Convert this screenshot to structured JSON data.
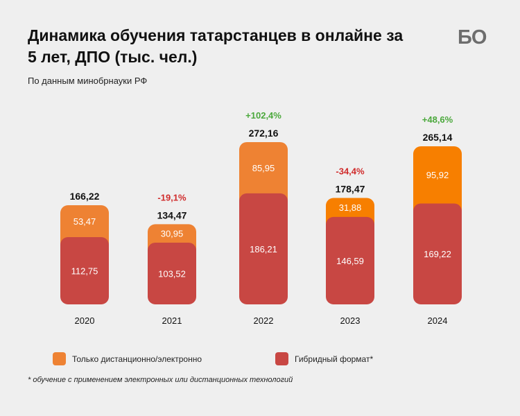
{
  "header": {
    "title": "Динамика обучения татарстанцев в онлайне за 5 лет, ДПО (тыс. чел.)",
    "subtitle": "По данным минобрнауки РФ",
    "logo": "БО"
  },
  "legend": {
    "remote_label": "Только дистанционно/электронно",
    "hybrid_label": "Гибридный формат*"
  },
  "footnote": "* обучение с применением электронных или дистанционных технологий",
  "colors": {
    "remote": "#ee8233",
    "remote_highlight": "#f77f00",
    "hybrid": "#c84743",
    "positive": "#4ba83c",
    "negative": "#d02b2b"
  },
  "chart_data": {
    "type": "bar",
    "stacked": true,
    "categories": [
      "2020",
      "2021",
      "2022",
      "2023",
      "2024"
    ],
    "series": [
      {
        "name": "Гибридный формат*",
        "values": [
          112.75,
          103.52,
          186.21,
          146.59,
          169.22
        ],
        "labels": [
          "112,75",
          "103,52",
          "186,21",
          "146,59",
          "169,22"
        ]
      },
      {
        "name": "Только дистанционно/электронно",
        "values": [
          53.47,
          30.95,
          85.95,
          31.88,
          95.92
        ],
        "labels": [
          "53,47",
          "30,95",
          "85,95",
          "31,88",
          "95,92"
        ]
      }
    ],
    "totals": [
      166.22,
      134.47,
      272.16,
      178.47,
      265.14
    ],
    "total_labels": [
      "166,22",
      "134,47",
      "272,16",
      "178,47",
      "265,14"
    ],
    "changes": [
      "",
      "-19,1%",
      "+102,4%",
      "-34,4%",
      "+48,6%"
    ]
  }
}
